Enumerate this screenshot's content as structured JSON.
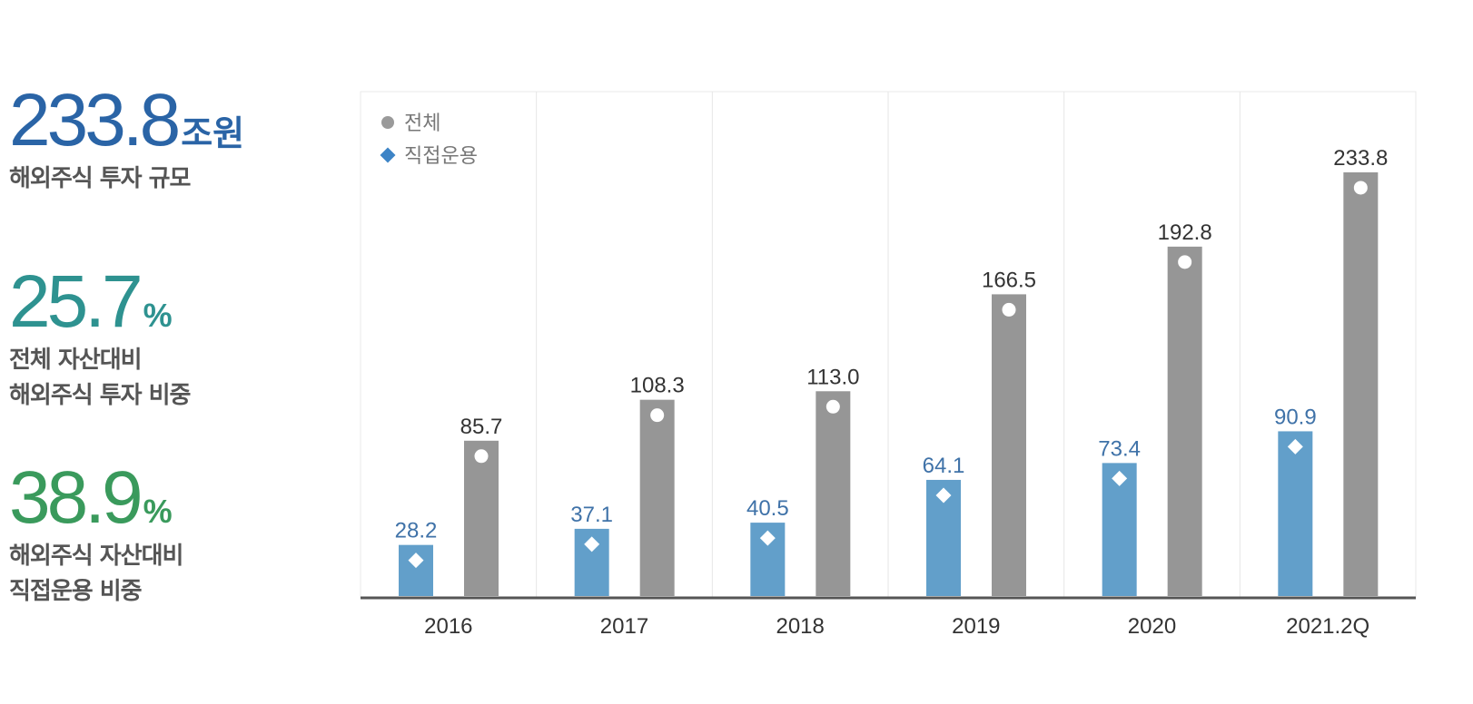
{
  "stats": [
    {
      "value": "233.8",
      "unit": "조원",
      "lines": [
        "해외주식 투자 규모"
      ]
    },
    {
      "value": "25.7",
      "unit": "%",
      "lines": [
        "전체 자산대비",
        "해외주식 투자 비중"
      ]
    },
    {
      "value": "38.9",
      "unit": "%",
      "lines": [
        "해외주식 자산대비",
        "직접운용 비중"
      ]
    }
  ],
  "colors": {
    "total_bar": "#969696",
    "direct_bar": "#629fca",
    "direct_label": "#3f72a8",
    "legend_dot": "#9a9a9a",
    "legend_diamond": "#3d84c6"
  },
  "chart_data": {
    "type": "bar",
    "categories": [
      "2016",
      "2017",
      "2018",
      "2019",
      "2020",
      "2021.2Q"
    ],
    "series": [
      {
        "name": "직접운용",
        "values": [
          28.2,
          37.1,
          40.5,
          64.1,
          73.4,
          90.9
        ],
        "marker": "diamond-icon"
      },
      {
        "name": "전체",
        "values": [
          85.7,
          108.3,
          113.0,
          166.5,
          192.8,
          233.8
        ],
        "marker": "dot-icon"
      }
    ],
    "value_labels": {
      "직접운용": [
        "28.2",
        "37.1",
        "40.5",
        "64.1",
        "73.4",
        "90.9"
      ],
      "전체": [
        "85.7",
        "108.3",
        "113.0",
        "166.5",
        "192.8",
        "233.8"
      ]
    },
    "ylim": [
      0,
      250
    ],
    "grid": "vertical separators between categories",
    "legend_position": "top-left"
  }
}
